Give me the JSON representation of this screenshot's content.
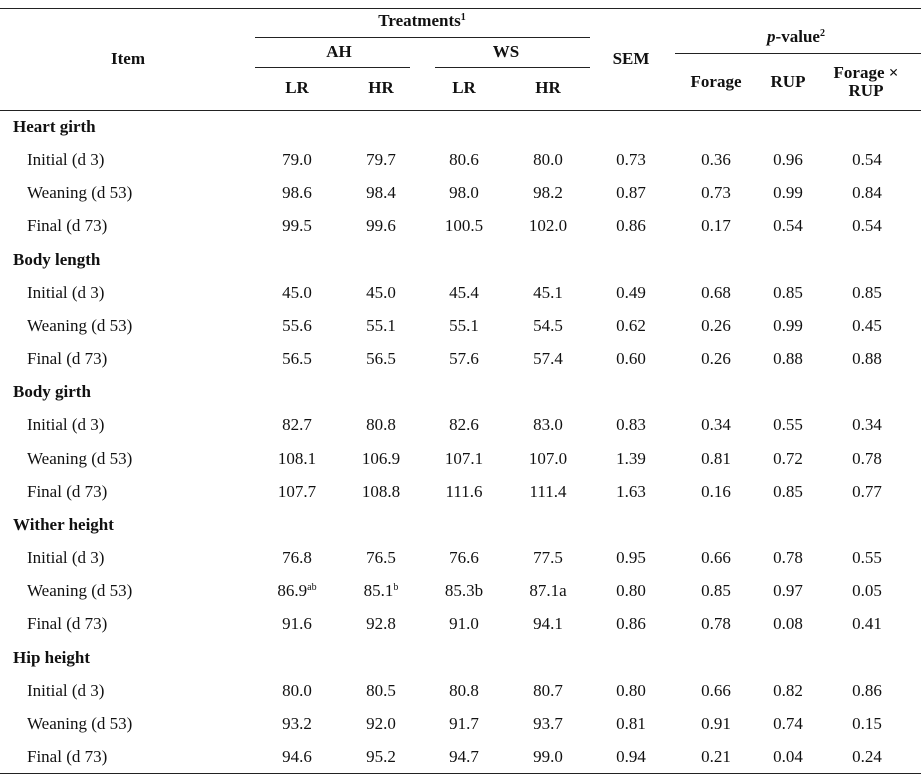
{
  "header": {
    "item": "Item",
    "treatments": {
      "text": "Treatments",
      "sup": "1"
    },
    "forage_groups": [
      "AH",
      "WS"
    ],
    "rup_levels": [
      "LR",
      "HR",
      "LR",
      "HR"
    ],
    "sem": "SEM",
    "p_value": {
      "italic": "p",
      "text": "-value",
      "sup": "2"
    },
    "p_columns": [
      "Forage",
      "RUP",
      "Forage × RUP"
    ]
  },
  "groups": [
    {
      "name": "Heart girth",
      "rows": [
        {
          "label": "Initial (d 3)",
          "cells": [
            "79.0",
            "79.7",
            "80.6",
            "80.0",
            "0.73",
            "0.36",
            "0.96",
            "0.54"
          ]
        },
        {
          "label": "Weaning (d 53)",
          "cells": [
            "98.6",
            "98.4",
            "98.0",
            "98.2",
            "0.87",
            "0.73",
            "0.99",
            "0.84"
          ]
        },
        {
          "label": "Final (d 73)",
          "cells": [
            "99.5",
            "99.6",
            "100.5",
            "102.0",
            "0.86",
            "0.17",
            "0.54",
            "0.54"
          ]
        }
      ]
    },
    {
      "name": "Body length",
      "rows": [
        {
          "label": "Initial (d 3)",
          "cells": [
            "45.0",
            "45.0",
            "45.4",
            "45.1",
            "0.49",
            "0.68",
            "0.85",
            "0.85"
          ]
        },
        {
          "label": "Weaning (d 53)",
          "cells": [
            "55.6",
            "55.1",
            "55.1",
            "54.5",
            "0.62",
            "0.26",
            "0.99",
            "0.45"
          ]
        },
        {
          "label": "Final (d 73)",
          "cells": [
            "56.5",
            "56.5",
            "57.6",
            "57.4",
            "0.60",
            "0.26",
            "0.88",
            "0.88"
          ]
        }
      ]
    },
    {
      "name": "Body girth",
      "rows": [
        {
          "label": "Initial (d 3)",
          "cells": [
            "82.7",
            "80.8",
            "82.6",
            "83.0",
            "0.83",
            "0.34",
            "0.55",
            "0.34"
          ]
        },
        {
          "label": "Weaning (d 53)",
          "cells": [
            "108.1",
            "106.9",
            "107.1",
            "107.0",
            "1.39",
            "0.81",
            "0.72",
            "0.78"
          ]
        },
        {
          "label": "Final (d 73)",
          "cells": [
            "107.7",
            "108.8",
            "111.6",
            "111.4",
            "1.63",
            "0.16",
            "0.85",
            "0.77"
          ]
        }
      ]
    },
    {
      "name": "Wither height",
      "rows": [
        {
          "label": "Initial (d 3)",
          "cells": [
            "76.8",
            "76.5",
            "76.6",
            "77.5",
            "0.95",
            "0.66",
            "0.78",
            "0.55"
          ]
        },
        {
          "label": "Weaning (d 53)",
          "cells": [
            {
              "text": "86.9",
              "sup": "ab"
            },
            {
              "text": "85.1",
              "sup": "b"
            },
            "85.3b",
            "87.1a",
            "0.80",
            "0.85",
            "0.97",
            "0.05"
          ]
        },
        {
          "label": "Final (d 73)",
          "cells": [
            "91.6",
            "92.8",
            "91.0",
            "94.1",
            "0.86",
            "0.78",
            "0.08",
            "0.41"
          ]
        }
      ]
    },
    {
      "name": "Hip height",
      "rows": [
        {
          "label": "Initial (d 3)",
          "cells": [
            "80.0",
            "80.5",
            "80.8",
            "80.7",
            "0.80",
            "0.66",
            "0.82",
            "0.86"
          ]
        },
        {
          "label": "Weaning (d 53)",
          "cells": [
            "93.2",
            "92.0",
            "91.7",
            "93.7",
            "0.81",
            "0.91",
            "0.74",
            "0.15"
          ]
        },
        {
          "label": "Final (d 73)",
          "cells": [
            "94.6",
            "95.2",
            "94.7",
            "99.0",
            "0.94",
            "0.21",
            "0.04",
            "0.24"
          ]
        }
      ]
    }
  ]
}
